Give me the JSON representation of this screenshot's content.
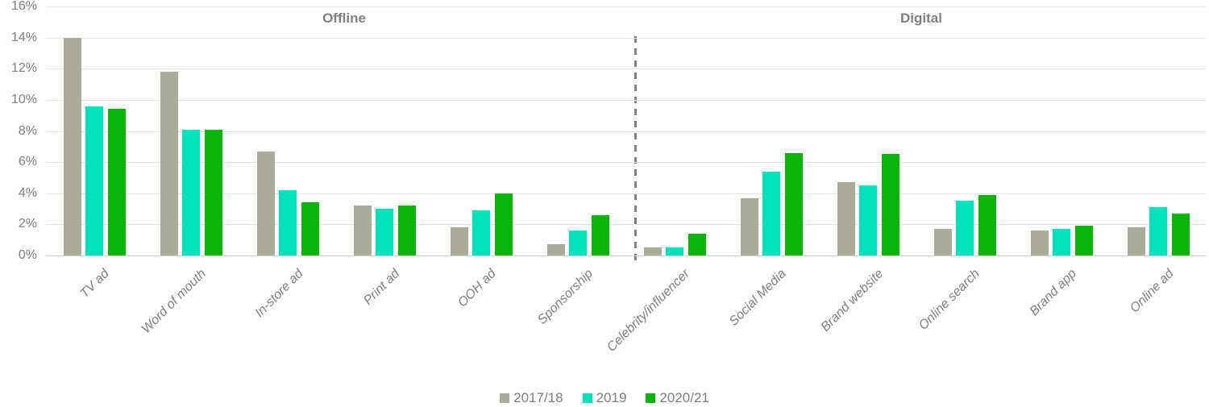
{
  "chart_data": {
    "type": "bar",
    "title": "",
    "xlabel": "",
    "ylabel": "",
    "ylim": [
      0,
      16
    ],
    "ytick_step": 2,
    "ytick_labels": [
      "0%",
      "2%",
      "4%",
      "6%",
      "8%",
      "10%",
      "12%",
      "14%",
      "16%"
    ],
    "grid": true,
    "legend_position": "bottom",
    "sections": [
      {
        "label": "Offline",
        "from": 0,
        "to": 5
      },
      {
        "label": "Digital",
        "from": 6,
        "to": 11
      }
    ],
    "categories": [
      "TV ad",
      "Word of mouth",
      "In-store ad",
      "Print ad",
      "OOH ad",
      "Sponsorship",
      "Celebrity/influencer",
      "Social Media",
      "Brand website",
      "Online search",
      "Brand app",
      "Online ad"
    ],
    "series": [
      {
        "name": "2017/18",
        "color": "#abac9b",
        "values": [
          14.0,
          11.8,
          6.7,
          3.2,
          1.8,
          0.7,
          0.5,
          3.7,
          4.7,
          1.7,
          1.6,
          1.8
        ]
      },
      {
        "name": "2019",
        "color": "#00e1be",
        "values": [
          9.6,
          8.1,
          4.2,
          3.0,
          2.9,
          1.6,
          0.5,
          5.4,
          4.5,
          3.5,
          1.7,
          3.1
        ]
      },
      {
        "name": "2020/21",
        "color": "#0bb40b",
        "values": [
          9.4,
          8.1,
          3.4,
          3.2,
          4.0,
          2.6,
          1.4,
          6.6,
          6.5,
          3.9,
          1.9,
          2.7
        ]
      }
    ],
    "colors": {
      "gridline": "#e5e5e5",
      "axis_line": "#d2d2d2",
      "tick_text": "#7f7f7f",
      "label_text": "#808080",
      "divider": "#7f7f7f"
    }
  }
}
